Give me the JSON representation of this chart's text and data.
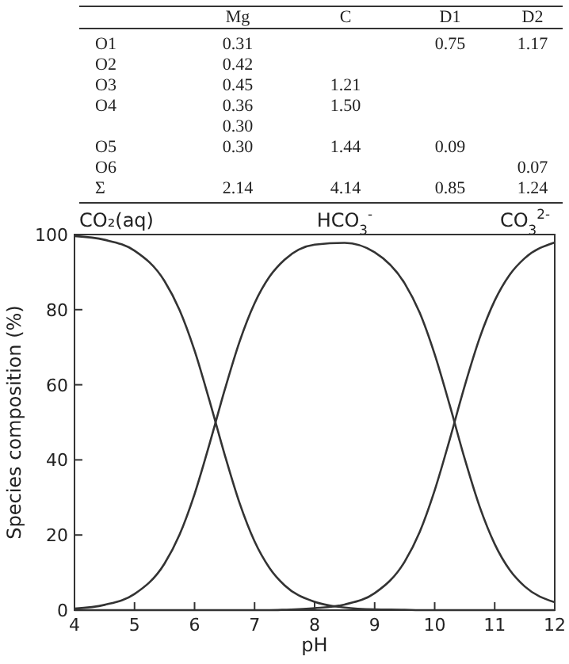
{
  "chart_data": [
    {
      "type": "other",
      "categories": [
        null,
        "Mg",
        "C",
        "D1",
        "D2"
      ],
      "y_categories": [
        "O1",
        "O2",
        "O3",
        "O4",
        null,
        "O5",
        "O6",
        "Σ"
      ],
      "cell_labels": [
        [
          "0.31",
          null,
          "0.75",
          "1.17"
        ],
        [
          "0.42",
          null,
          null,
          null
        ],
        [
          "0.45",
          "1.21",
          null,
          null
        ],
        [
          "0.36",
          "1.50",
          null,
          null
        ],
        [
          "0.30",
          null,
          null,
          null
        ],
        [
          "0.30",
          "1.44",
          "0.09",
          null
        ],
        [
          null,
          null,
          null,
          "0.07"
        ],
        [
          "2.14",
          "4.14",
          "0.85",
          "1.24"
        ]
      ]
    },
    {
      "type": "line",
      "xlabel": "pH",
      "ylabel": "Species composition (%)",
      "x": [
        4,
        4.5,
        5,
        5.5,
        5.75,
        6,
        6.25,
        6.5,
        6.75,
        7,
        7.25,
        7.5,
        8,
        8.5,
        9,
        9.5,
        9.75,
        10,
        10.25,
        10.5,
        10.75,
        11,
        11.25,
        11.5,
        12
      ],
      "xlim": [
        4,
        12
      ],
      "xticks": [
        4,
        5,
        6,
        7,
        8,
        9,
        10,
        11,
        12
      ],
      "ylim": [
        0,
        100
      ],
      "yticks": [
        0,
        20,
        40,
        60,
        80,
        100
      ],
      "grid": false,
      "marker": "none",
      "line_style": "solid",
      "series": [
        {
          "name": "CO₂(aq)",
          "color": "#333333",
          "values": [
            99.6,
            98.6,
            95.7,
            87.6,
            79.9,
            69.1,
            55.7,
            41.5,
            28.5,
            18.3,
            11.2,
            6.6,
            2.2,
            0.7,
            0.2,
            0.1,
            0,
            0,
            0,
            0,
            0,
            0,
            0,
            0,
            0
          ]
        },
        {
          "name": "HCO$_{3}$$^{-}$",
          "color": "#333333",
          "values": [
            0.4,
            1.4,
            4.3,
            12.4,
            20.1,
            30.9,
            44.3,
            58.5,
            71.5,
            81.7,
            88.8,
            93.3,
            97.3,
            97.8,
            95.3,
            87.0,
            79.2,
            68.1,
            54.6,
            40.3,
            27.5,
            17.6,
            10.7,
            6.3,
            2.1
          ]
        },
        {
          "name": "CO$_{3}$$^{2-}$",
          "color": "#333333",
          "values": [
            0,
            0,
            0,
            0,
            0,
            0,
            0,
            0,
            0,
            0,
            0,
            0.1,
            0.5,
            1.5,
            4.5,
            12.9,
            20.8,
            31.9,
            45.4,
            59.7,
            72.5,
            82.4,
            89.3,
            93.7,
            97.9
          ]
        }
      ]
    }
  ]
}
